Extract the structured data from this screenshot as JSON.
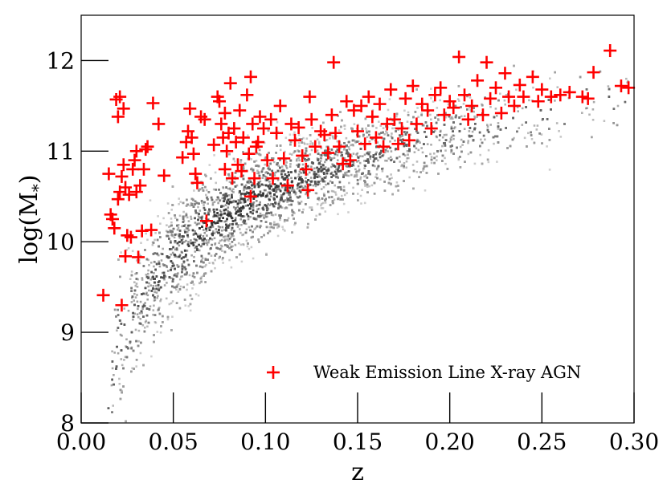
{
  "chart_data": {
    "type": "scatter",
    "xlabel": "z",
    "ylabel": "log(M*)",
    "xlim": [
      0.0,
      0.3
    ],
    "ylim": [
      8.0,
      12.5
    ],
    "x_ticks": [
      0.0,
      0.05,
      0.1,
      0.15,
      0.2,
      0.25,
      0.3
    ],
    "x_tick_labels": [
      "0.00",
      "0.05",
      "0.10",
      "0.15",
      "0.20",
      "0.25",
      "0.30"
    ],
    "y_ticks": [
      8,
      9,
      10,
      11,
      12
    ],
    "y_tick_labels": [
      "8",
      "9",
      "10",
      "11",
      "12"
    ],
    "grid": false,
    "legend_position": "bottom-right",
    "background_density": {
      "description": "",
      "color": "#7a7a7a",
      "ridge": [
        [
          0.012,
          8.05
        ],
        [
          0.015,
          8.4
        ],
        [
          0.02,
          8.9
        ],
        [
          0.03,
          9.3
        ],
        [
          0.04,
          9.6
        ],
        [
          0.05,
          9.85
        ],
        [
          0.06,
          10.05
        ],
        [
          0.07,
          10.2
        ],
        [
          0.08,
          10.35
        ],
        [
          0.09,
          10.45
        ],
        [
          0.1,
          10.55
        ],
        [
          0.12,
          10.72
        ],
        [
          0.14,
          10.85
        ],
        [
          0.16,
          10.98
        ],
        [
          0.18,
          11.1
        ],
        [
          0.2,
          11.22
        ],
        [
          0.22,
          11.32
        ],
        [
          0.24,
          11.42
        ],
        [
          0.26,
          11.5
        ],
        [
          0.28,
          11.58
        ],
        [
          0.3,
          11.64
        ]
      ],
      "upper_envelope": [
        [
          0.012,
          9.6
        ],
        [
          0.02,
          10.6
        ],
        [
          0.04,
          11.2
        ],
        [
          0.06,
          11.45
        ],
        [
          0.1,
          11.7
        ],
        [
          0.15,
          11.85
        ],
        [
          0.2,
          11.95
        ],
        [
          0.25,
          12.0
        ],
        [
          0.3,
          12.0
        ]
      ]
    },
    "series": [
      {
        "name": "Weak Emission Line X-ray AGN",
        "marker": "plus",
        "color": "#ff0000",
        "points": [
          [
            0.012,
            9.41
          ],
          [
            0.015,
            10.75
          ],
          [
            0.016,
            10.3
          ],
          [
            0.017,
            10.25
          ],
          [
            0.018,
            10.15
          ],
          [
            0.019,
            11.57
          ],
          [
            0.02,
            11.38
          ],
          [
            0.02,
            10.47
          ],
          [
            0.021,
            11.6
          ],
          [
            0.021,
            10.55
          ],
          [
            0.022,
            9.3
          ],
          [
            0.022,
            10.72
          ],
          [
            0.023,
            11.47
          ],
          [
            0.023,
            10.85
          ],
          [
            0.024,
            9.84
          ],
          [
            0.024,
            10.6
          ],
          [
            0.025,
            10.07
          ],
          [
            0.026,
            10.52
          ],
          [
            0.027,
            10.05
          ],
          [
            0.028,
            10.8
          ],
          [
            0.029,
            10.9
          ],
          [
            0.03,
            11.0
          ],
          [
            0.03,
            10.55
          ],
          [
            0.031,
            9.83
          ],
          [
            0.032,
            10.62
          ],
          [
            0.033,
            10.12
          ],
          [
            0.034,
            10.8
          ],
          [
            0.035,
            11.02
          ],
          [
            0.036,
            11.05
          ],
          [
            0.038,
            10.13
          ],
          [
            0.039,
            11.53
          ],
          [
            0.042,
            11.3
          ],
          [
            0.045,
            10.73
          ],
          [
            0.055,
            10.93
          ],
          [
            0.057,
            11.1
          ],
          [
            0.058,
            11.22
          ],
          [
            0.059,
            11.47
          ],
          [
            0.06,
            11.15
          ],
          [
            0.061,
            10.97
          ],
          [
            0.062,
            10.75
          ],
          [
            0.063,
            10.65
          ],
          [
            0.065,
            11.38
          ],
          [
            0.067,
            11.35
          ],
          [
            0.068,
            10.23
          ],
          [
            0.072,
            11.07
          ],
          [
            0.074,
            11.6
          ],
          [
            0.075,
            11.55
          ],
          [
            0.076,
            11.3
          ],
          [
            0.077,
            11.15
          ],
          [
            0.078,
            11.42
          ],
          [
            0.078,
            10.8
          ],
          [
            0.079,
            11.0
          ],
          [
            0.08,
            11.2
          ],
          [
            0.081,
            11.75
          ],
          [
            0.082,
            10.7
          ],
          [
            0.083,
            11.25
          ],
          [
            0.084,
            11.1
          ],
          [
            0.085,
            10.85
          ],
          [
            0.086,
            11.45
          ],
          [
            0.087,
            10.78
          ],
          [
            0.088,
            11.15
          ],
          [
            0.09,
            11.62
          ],
          [
            0.091,
            10.97
          ],
          [
            0.092,
            11.82
          ],
          [
            0.092,
            10.5
          ],
          [
            0.093,
            11.3
          ],
          [
            0.094,
            10.7
          ],
          [
            0.095,
            11.05
          ],
          [
            0.096,
            11.1
          ],
          [
            0.097,
            11.38
          ],
          [
            0.099,
            11.25
          ],
          [
            0.101,
            10.9
          ],
          [
            0.103,
            11.35
          ],
          [
            0.104,
            10.7
          ],
          [
            0.106,
            11.2
          ],
          [
            0.108,
            11.5
          ],
          [
            0.11,
            10.92
          ],
          [
            0.112,
            10.62
          ],
          [
            0.114,
            11.3
          ],
          [
            0.116,
            11.12
          ],
          [
            0.118,
            11.26
          ],
          [
            0.12,
            10.95
          ],
          [
            0.122,
            10.8
          ],
          [
            0.123,
            10.57
          ],
          [
            0.124,
            11.6
          ],
          [
            0.125,
            11.35
          ],
          [
            0.127,
            11.05
          ],
          [
            0.13,
            11.22
          ],
          [
            0.132,
            11.18
          ],
          [
            0.134,
            10.98
          ],
          [
            0.136,
            11.4
          ],
          [
            0.137,
            11.98
          ],
          [
            0.138,
            11.2
          ],
          [
            0.14,
            11.05
          ],
          [
            0.142,
            10.86
          ],
          [
            0.144,
            11.55
          ],
          [
            0.146,
            10.9
          ],
          [
            0.148,
            11.45
          ],
          [
            0.15,
            11.22
          ],
          [
            0.152,
            11.5
          ],
          [
            0.154,
            11.08
          ],
          [
            0.156,
            11.6
          ],
          [
            0.158,
            11.38
          ],
          [
            0.16,
            11.15
          ],
          [
            0.162,
            11.52
          ],
          [
            0.164,
            11.05
          ],
          [
            0.166,
            11.3
          ],
          [
            0.168,
            11.68
          ],
          [
            0.17,
            11.35
          ],
          [
            0.172,
            11.08
          ],
          [
            0.174,
            11.25
          ],
          [
            0.176,
            11.58
          ],
          [
            0.178,
            11.12
          ],
          [
            0.18,
            11.72
          ],
          [
            0.182,
            11.3
          ],
          [
            0.185,
            11.52
          ],
          [
            0.188,
            11.45
          ],
          [
            0.19,
            11.25
          ],
          [
            0.192,
            11.62
          ],
          [
            0.195,
            11.7
          ],
          [
            0.197,
            11.4
          ],
          [
            0.2,
            11.55
          ],
          [
            0.202,
            11.48
          ],
          [
            0.205,
            12.04
          ],
          [
            0.208,
            11.62
          ],
          [
            0.21,
            11.35
          ],
          [
            0.212,
            11.5
          ],
          [
            0.215,
            11.78
          ],
          [
            0.218,
            11.4
          ],
          [
            0.22,
            11.98
          ],
          [
            0.222,
            11.58
          ],
          [
            0.225,
            11.7
          ],
          [
            0.228,
            11.42
          ],
          [
            0.23,
            11.86
          ],
          [
            0.232,
            11.6
          ],
          [
            0.235,
            11.5
          ],
          [
            0.238,
            11.73
          ],
          [
            0.24,
            11.6
          ],
          [
            0.245,
            11.82
          ],
          [
            0.248,
            11.55
          ],
          [
            0.25,
            11.68
          ],
          [
            0.255,
            11.6
          ],
          [
            0.26,
            11.62
          ],
          [
            0.265,
            11.65
          ],
          [
            0.272,
            11.6
          ],
          [
            0.275,
            11.58
          ],
          [
            0.278,
            11.87
          ],
          [
            0.287,
            12.11
          ],
          [
            0.293,
            11.72
          ],
          [
            0.297,
            11.7
          ]
        ]
      }
    ],
    "legend_entries": [
      "Weak Emission Line X-ray AGN"
    ]
  }
}
